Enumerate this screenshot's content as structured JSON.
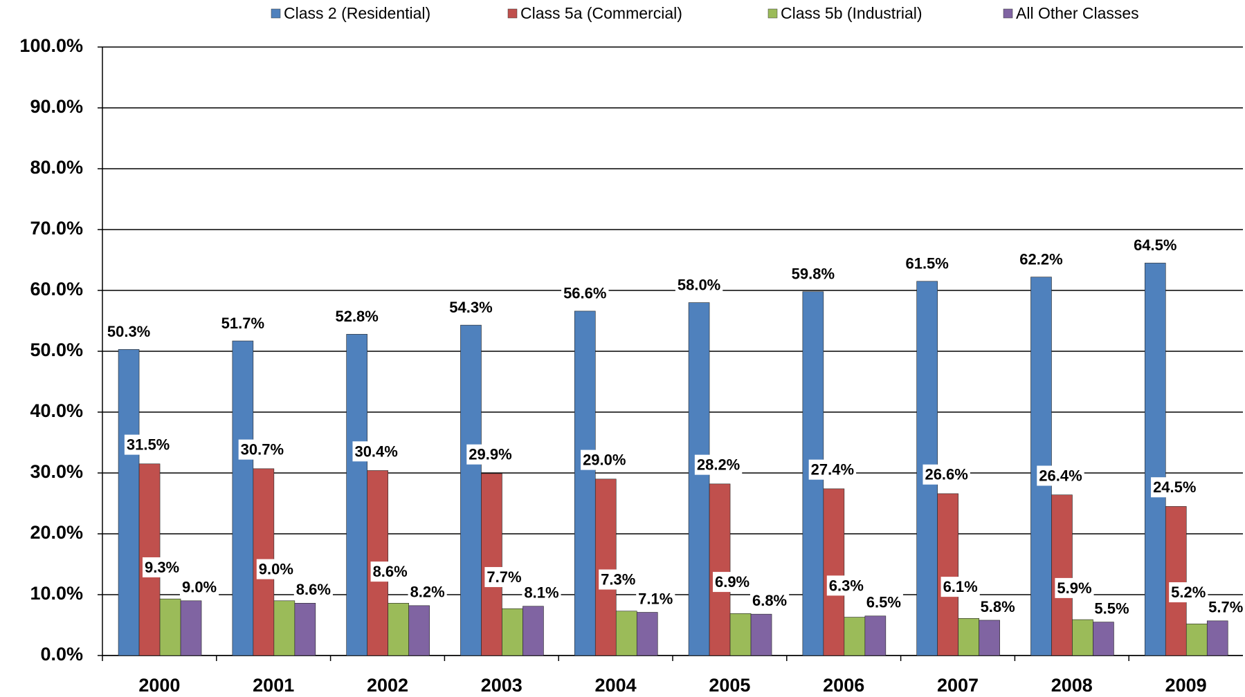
{
  "chart_data": {
    "type": "bar",
    "categories": [
      "2000",
      "2001",
      "2002",
      "2003",
      "2004",
      "2005",
      "2006",
      "2007",
      "2008",
      "2009"
    ],
    "series": [
      {
        "name": "Class 2 (Residential)",
        "color": "#4F81BD",
        "values": [
          50.3,
          51.7,
          52.8,
          54.3,
          56.6,
          58.0,
          59.8,
          61.5,
          62.2,
          64.5
        ],
        "value_labels": [
          "50.3%",
          "51.7%",
          "52.8%",
          "54.3%",
          "56.6%",
          "58.0%",
          "59.8%",
          "61.5%",
          "62.2%",
          "64.5%"
        ]
      },
      {
        "name": "Class 5a (Commercial)",
        "color": "#C0504D",
        "values": [
          31.5,
          30.7,
          30.4,
          29.9,
          29.0,
          28.2,
          27.4,
          26.6,
          26.4,
          24.5
        ],
        "value_labels": [
          "31.5%",
          "30.7%",
          "30.4%",
          "29.9%",
          "29.0%",
          "28.2%",
          "27.4%",
          "26.6%",
          "26.4%",
          "24.5%"
        ]
      },
      {
        "name": "Class 5b (Industrial)",
        "color": "#9BBB59",
        "values": [
          9.3,
          9.0,
          8.6,
          7.7,
          7.3,
          6.9,
          6.3,
          6.1,
          5.9,
          5.2
        ],
        "value_labels": [
          "9.3%",
          "9.0%",
          "8.6%",
          "7.7%",
          "7.3%",
          "6.9%",
          "6.3%",
          "6.1%",
          "5.9%",
          "5.2%"
        ]
      },
      {
        "name": "All Other Classes",
        "color": "#8064A2",
        "values": [
          9.0,
          8.6,
          8.2,
          8.1,
          7.1,
          6.8,
          6.5,
          5.8,
          5.5,
          5.7
        ],
        "value_labels": [
          "9.0%",
          "8.6%",
          "8.2%",
          "8.1%",
          "7.1%",
          "6.8%",
          "6.5%",
          "5.8%",
          "5.5%",
          "5.7%"
        ]
      }
    ],
    "ylim": [
      0,
      100
    ],
    "yticks": [
      {
        "value": 0,
        "label": "0.0%"
      },
      {
        "value": 10,
        "label": "10.0%"
      },
      {
        "value": 20,
        "label": "20.0%"
      },
      {
        "value": 30,
        "label": "30.0%"
      },
      {
        "value": 40,
        "label": "40.0%"
      },
      {
        "value": 50,
        "label": "50.0%"
      },
      {
        "value": 60,
        "label": "60.0%"
      },
      {
        "value": 70,
        "label": "70.0%"
      },
      {
        "value": 80,
        "label": "80.0%"
      },
      {
        "value": 90,
        "label": "90.0%"
      },
      {
        "value": 100,
        "label": "100.0%"
      }
    ],
    "grid": true,
    "legend": "top"
  }
}
